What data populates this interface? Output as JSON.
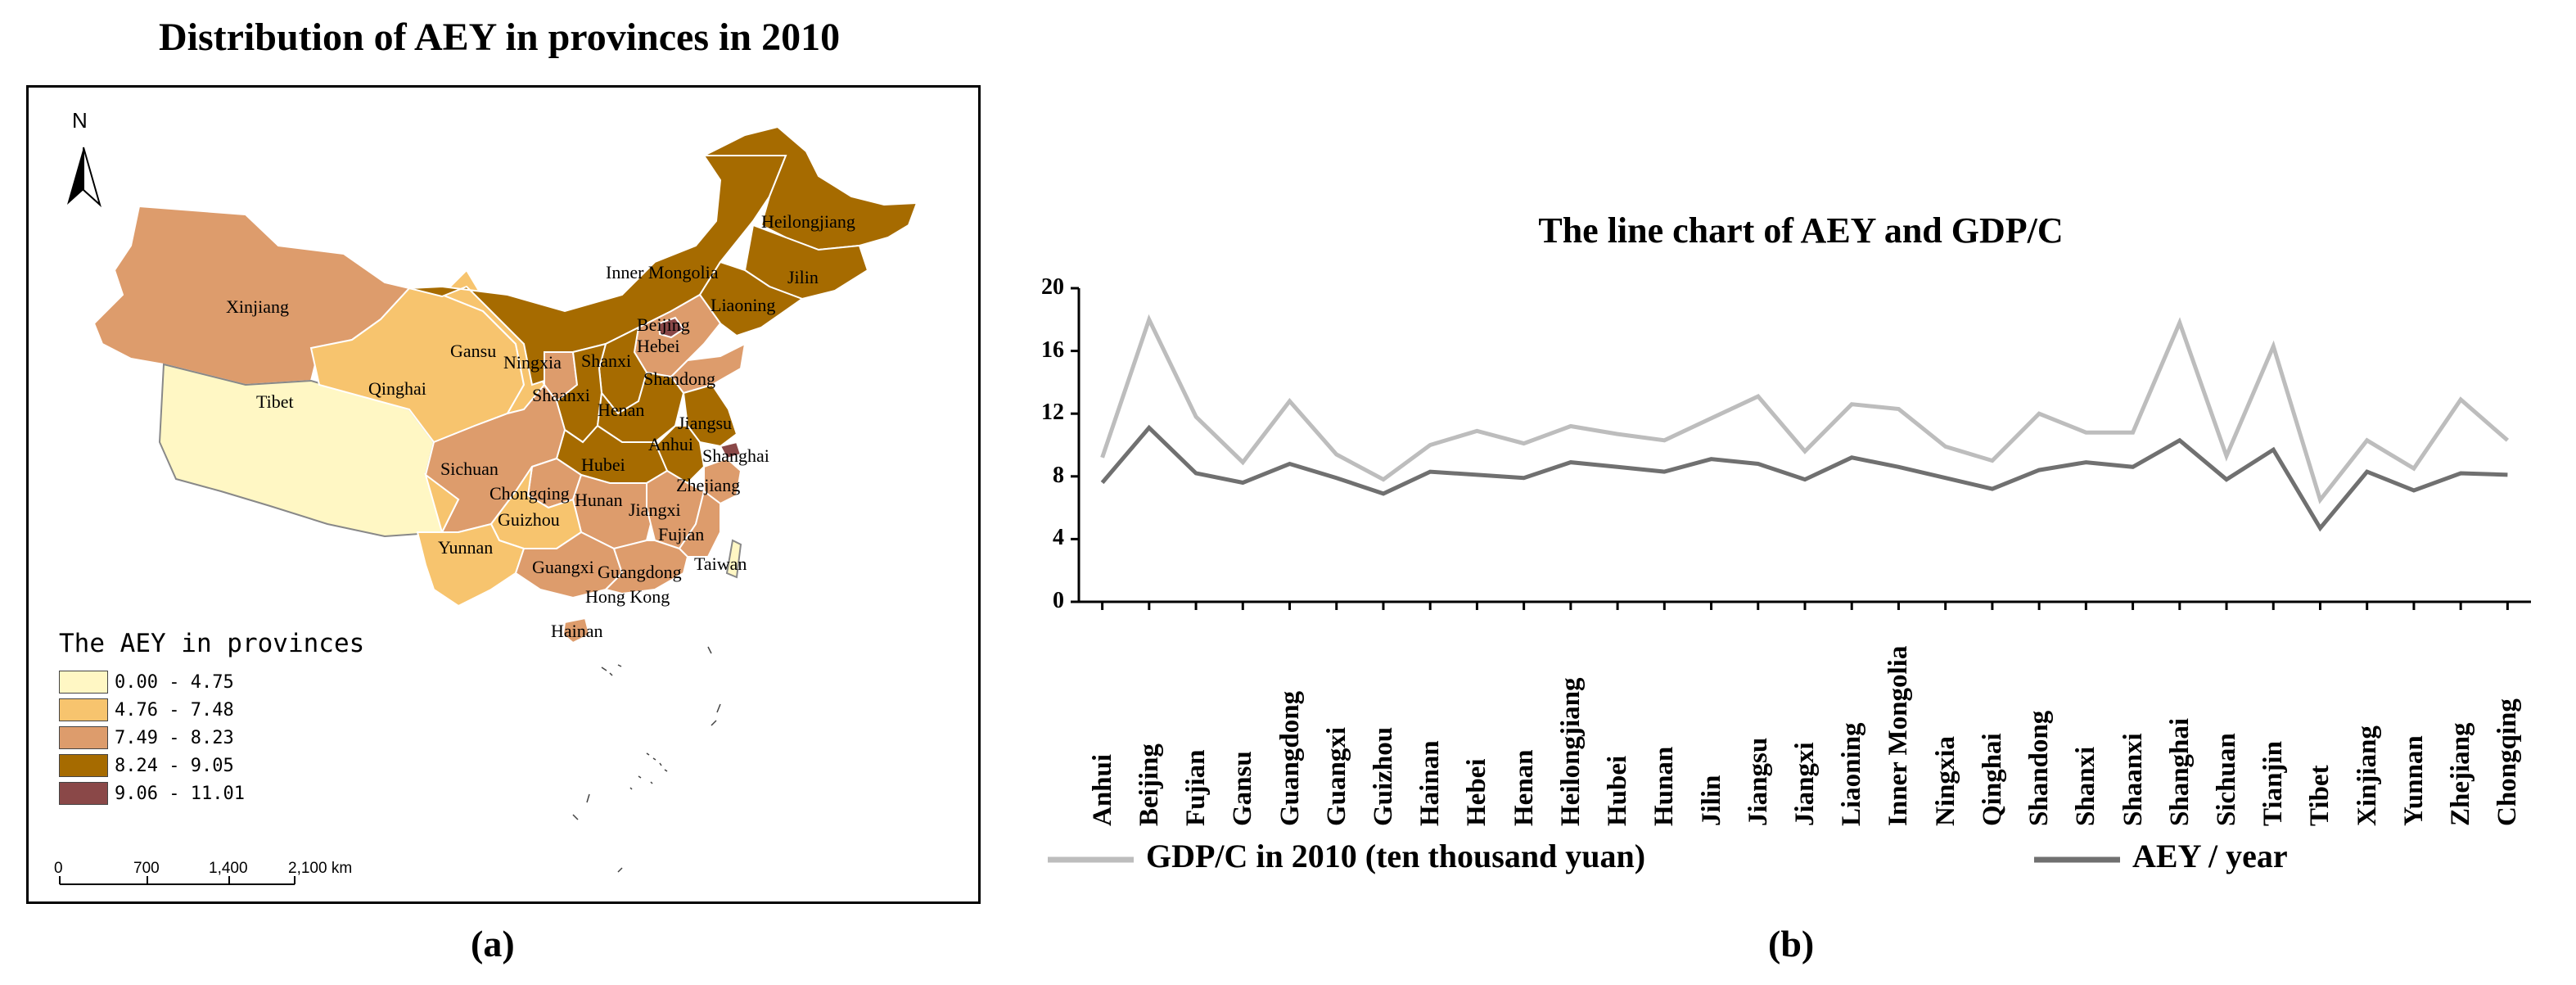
{
  "panel_a": {
    "title": "Distribution of AEY in provinces in 2010",
    "caption": "(a)",
    "north_label": "N",
    "legend_title": "The AEY in provinces",
    "legend": [
      {
        "label": "0.00 - 4.75",
        "color": "#fff7c4"
      },
      {
        "label": "4.76 - 7.48",
        "color": "#f7c46e"
      },
      {
        "label": "7.49 - 8.23",
        "color": "#dd9c6c"
      },
      {
        "label": "8.24 - 9.05",
        "color": "#a66b00"
      },
      {
        "label": "9.06 - 11.01",
        "color": "#8a4848"
      }
    ],
    "scale_labels": [
      "0",
      "700",
      "1,400",
      "2,100 km"
    ],
    "province_labels": [
      "Heilongjiang",
      "Jilin",
      "Liaoning",
      "Inner Mongolia",
      "Xinjiang",
      "Gansu",
      "Ningxia",
      "Shanxi",
      "Beijing",
      "Hebei",
      "Shandong",
      "Qinghai",
      "Shaanxi",
      "Henan",
      "Jiangsu",
      "Anhui",
      "Shanghai",
      "Tibet",
      "Sichuan",
      "Hubei",
      "Chongqing",
      "Hunan",
      "Jiangxi",
      "Zhejiang",
      "Guizhou",
      "Fujian",
      "Yunnan",
      "Guangxi",
      "Guangdong",
      "Taiwan",
      "Hong Kong",
      "Hainan"
    ]
  },
  "panel_b": {
    "caption": "(b)"
  },
  "chart_data": {
    "type": "line",
    "title": "The line chart of AEY and GDP/C",
    "categories": [
      "Anhui",
      "Beijing",
      "Fujian",
      "Gansu",
      "Guangdong",
      "Guangxi",
      "Guizhou",
      "Hainan",
      "Hebei",
      "Henan",
      "Heilongjiang",
      "Hubei",
      "Hunan",
      "Jilin",
      "Jiangsu",
      "Jiangxi",
      "Liaoning",
      "Inner Mongolia",
      "Ningxia",
      "Qinghai",
      "Shandong",
      "Shanxi",
      "Shaanxi",
      "Shanghai",
      "Sichuan",
      "Tianjin",
      "Tibet",
      "Xinjiang",
      "Yunnan",
      "Zhejiang",
      "Chongqing"
    ],
    "yticks": [
      "0",
      "4",
      "8",
      "12",
      "16",
      "20"
    ],
    "ylim": [
      0,
      20
    ],
    "series": [
      {
        "name": "GDP/C in 2010 (ten thousand yuan)",
        "color": "#bdbdbd",
        "values": [
          9.2,
          18.0,
          11.8,
          8.9,
          12.8,
          9.4,
          7.8,
          10.0,
          10.9,
          10.1,
          11.2,
          10.7,
          10.3,
          11.7,
          13.1,
          9.6,
          12.6,
          12.3,
          9.9,
          9.0,
          12.0,
          10.8,
          10.8,
          17.8,
          9.3,
          16.3,
          6.5,
          10.3,
          8.5,
          12.9,
          10.3
        ]
      },
      {
        "name": "AEY / year",
        "color": "#707070",
        "values": [
          7.6,
          11.1,
          8.2,
          7.6,
          8.8,
          7.9,
          6.9,
          8.3,
          8.1,
          7.9,
          8.9,
          8.6,
          8.3,
          9.1,
          8.8,
          7.8,
          9.2,
          8.6,
          7.9,
          7.2,
          8.4,
          8.9,
          8.6,
          10.3,
          7.8,
          9.7,
          4.7,
          8.3,
          7.1,
          8.2,
          8.1
        ]
      }
    ]
  }
}
